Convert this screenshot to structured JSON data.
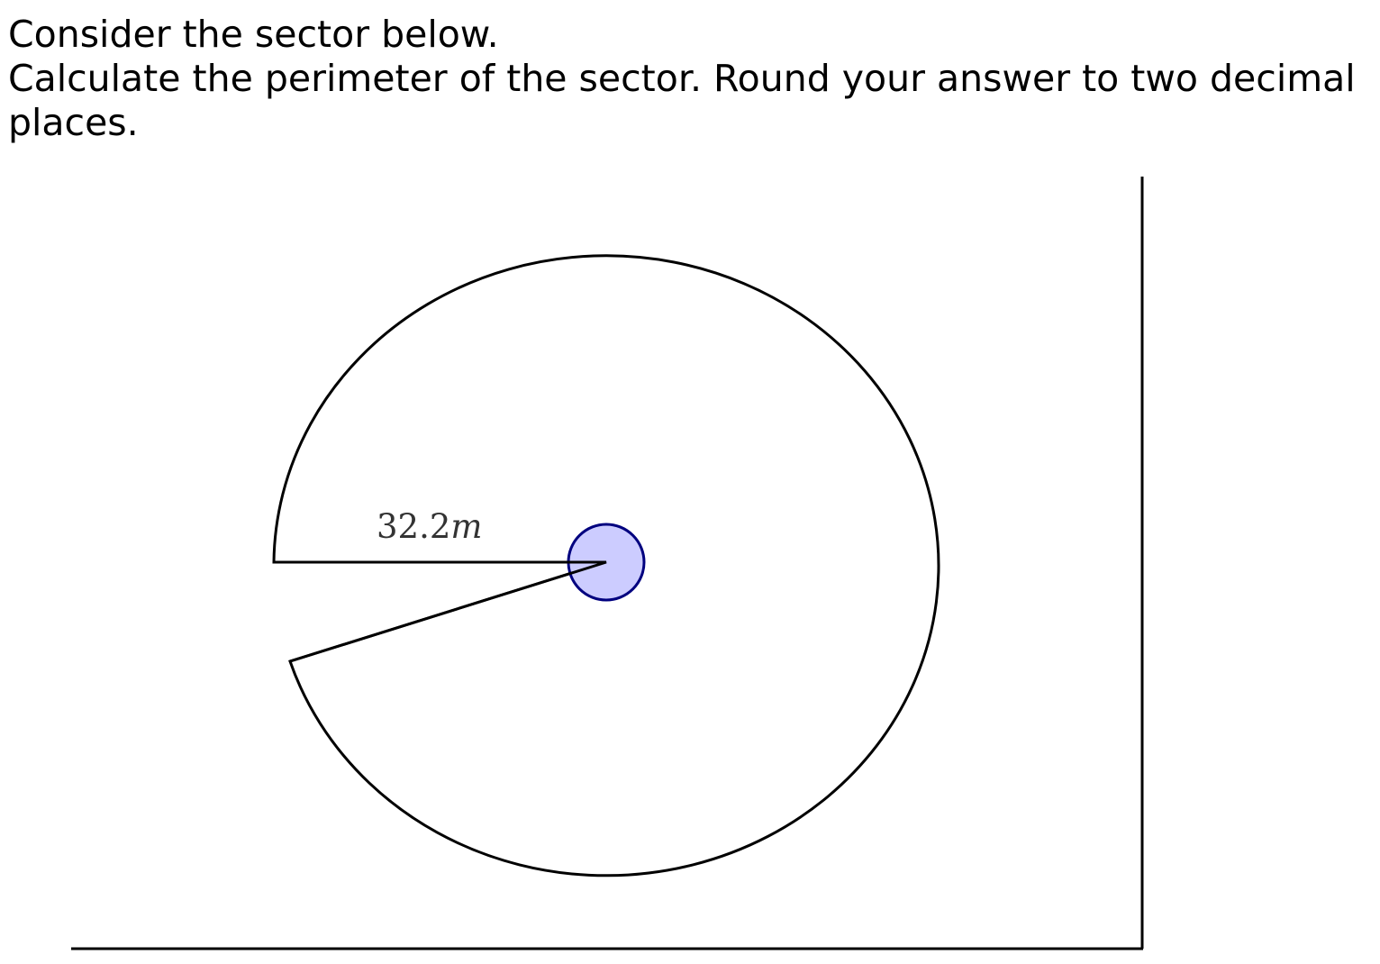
{
  "question": {
    "line1": "Consider the sector below.",
    "line2": "Calculate the perimeter of the sector. Round your answer to two decimal places."
  },
  "diagram": {
    "radius_value": "32.2",
    "radius_unit": "m",
    "center_fill": "#ccccff",
    "center_stroke": "#00007f",
    "outline_color": "#000000"
  }
}
